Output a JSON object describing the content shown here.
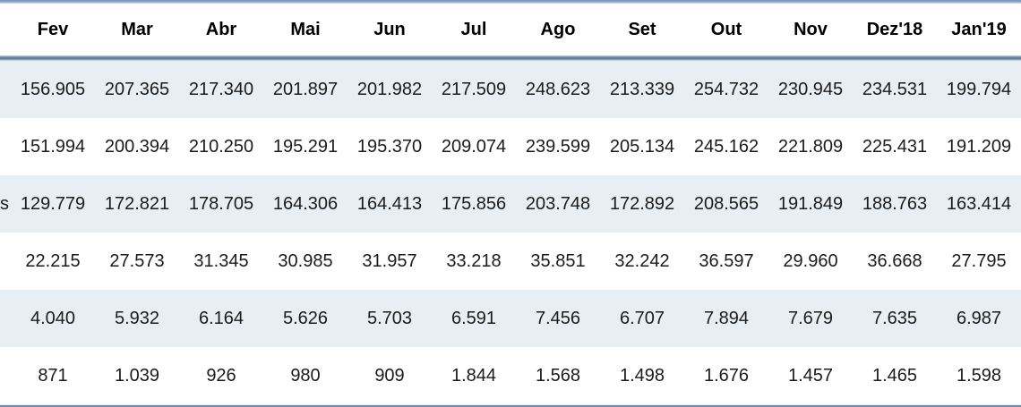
{
  "table": {
    "columns": [
      "Fev",
      "Mar",
      "Abr",
      "Mai",
      "Jun",
      "Jul",
      "Ago",
      "Set",
      "Out",
      "Nov",
      "Dez'18",
      "Jan'19"
    ],
    "rows": [
      {
        "label_fragment": "",
        "values": [
          "156.905",
          "207.365",
          "217.340",
          "201.897",
          "201.982",
          "217.509",
          "248.623",
          "213.339",
          "254.732",
          "230.945",
          "234.531",
          "199.794"
        ]
      },
      {
        "label_fragment": "",
        "values": [
          "151.994",
          "200.394",
          "210.250",
          "195.291",
          "195.370",
          "209.074",
          "239.599",
          "205.134",
          "245.162",
          "221.809",
          "225.431",
          "191.209"
        ]
      },
      {
        "label_fragment": "s",
        "values": [
          "129.779",
          "172.821",
          "178.705",
          "164.306",
          "164.413",
          "175.856",
          "203.748",
          "172.892",
          "208.565",
          "191.849",
          "188.763",
          "163.414"
        ]
      },
      {
        "label_fragment": "",
        "values": [
          "22.215",
          "27.573",
          "31.345",
          "30.985",
          "31.957",
          "33.218",
          "35.851",
          "32.242",
          "36.597",
          "29.960",
          "36.668",
          "27.795"
        ]
      },
      {
        "label_fragment": "",
        "values": [
          "4.040",
          "5.932",
          "6.164",
          "5.626",
          "5.703",
          "6.591",
          "7.456",
          "6.707",
          "7.894",
          "7.679",
          "7.635",
          "6.987"
        ]
      },
      {
        "label_fragment": "",
        "values": [
          "871",
          "1.039",
          "926",
          "980",
          "909",
          "1.844",
          "1.568",
          "1.498",
          "1.676",
          "1.457",
          "1.465",
          "1.598"
        ]
      }
    ],
    "colors": {
      "band_fill": "#e9edf4",
      "accent_border_top": "#7492ba",
      "accent_border_header": "#647f9f",
      "accent_border_bottom": "#6f8aa9",
      "text": "#1b1b1b"
    }
  },
  "chart_data": {
    "type": "table",
    "title": "",
    "categories": [
      "Fev",
      "Mar",
      "Abr",
      "Mai",
      "Jun",
      "Jul",
      "Ago",
      "Set",
      "Out",
      "Nov",
      "Dez'18",
      "Jan'19"
    ],
    "series": [
      {
        "name": "",
        "values": [
          156905,
          207365,
          217340,
          201897,
          201982,
          217509,
          248623,
          213339,
          254732,
          230945,
          234531,
          199794
        ]
      },
      {
        "name": "",
        "values": [
          151994,
          200394,
          210250,
          195291,
          195370,
          209074,
          239599,
          205134,
          245162,
          221809,
          225431,
          191209
        ]
      },
      {
        "name": "s",
        "values": [
          129779,
          172821,
          178705,
          164306,
          164413,
          175856,
          203748,
          172892,
          208565,
          191849,
          188763,
          163414
        ]
      },
      {
        "name": "",
        "values": [
          22215,
          27573,
          31345,
          30985,
          31957,
          33218,
          35851,
          32242,
          36597,
          29960,
          36668,
          27795
        ]
      },
      {
        "name": "",
        "values": [
          4040,
          5932,
          6164,
          5626,
          5703,
          6591,
          7456,
          6707,
          7894,
          7679,
          7635,
          6987
        ]
      },
      {
        "name": "",
        "values": [
          871,
          1039,
          926,
          980,
          909,
          1844,
          1568,
          1498,
          1676,
          1457,
          1465,
          1598
        ]
      }
    ],
    "layout": {
      "row_banding": [
        true,
        false,
        true,
        false,
        true,
        false
      ],
      "grid": "off",
      "number_format": "pt-BR thousands with dot separator",
      "left_label_column_cropped": true
    }
  }
}
